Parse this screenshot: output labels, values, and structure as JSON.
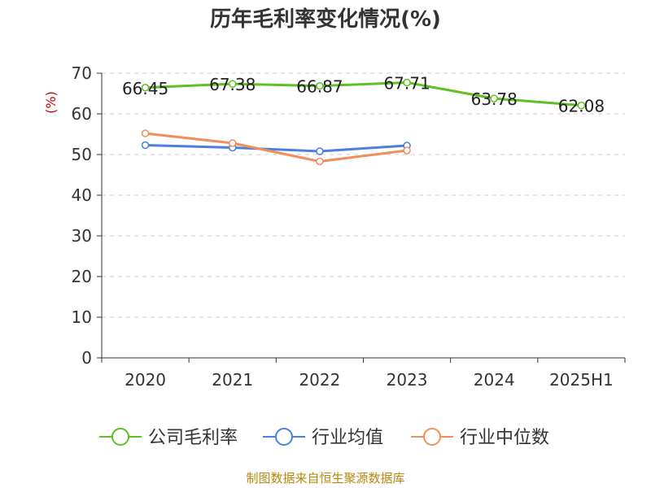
{
  "chart_data": {
    "type": "line",
    "title": "历年毛利率变化情况(%)",
    "ylabel": "(%)",
    "xlabel": "",
    "categories": [
      "2020",
      "2021",
      "2022",
      "2023",
      "2024",
      "2025H1"
    ],
    "ylim": [
      0,
      70
    ],
    "yticks": [
      0,
      10,
      20,
      30,
      40,
      50,
      60,
      70
    ],
    "grid": true,
    "legend_position": "bottom",
    "series": [
      {
        "name": "公司毛利率",
        "color": "#5ec022",
        "values": [
          66.45,
          67.38,
          66.87,
          67.71,
          63.78,
          62.08
        ],
        "labels": [
          "66.45",
          "67.38",
          "66.87",
          "67.71",
          "63.78",
          "62.08"
        ]
      },
      {
        "name": "行业均值",
        "color": "#4a7fde",
        "values": [
          52.3,
          51.7,
          50.8,
          52.2,
          null,
          null
        ]
      },
      {
        "name": "行业中位数",
        "color": "#f28e5a",
        "values": [
          55.2,
          52.8,
          48.3,
          51.0,
          null,
          null
        ]
      }
    ]
  },
  "source": "制图数据来自恒生聚源数据库"
}
